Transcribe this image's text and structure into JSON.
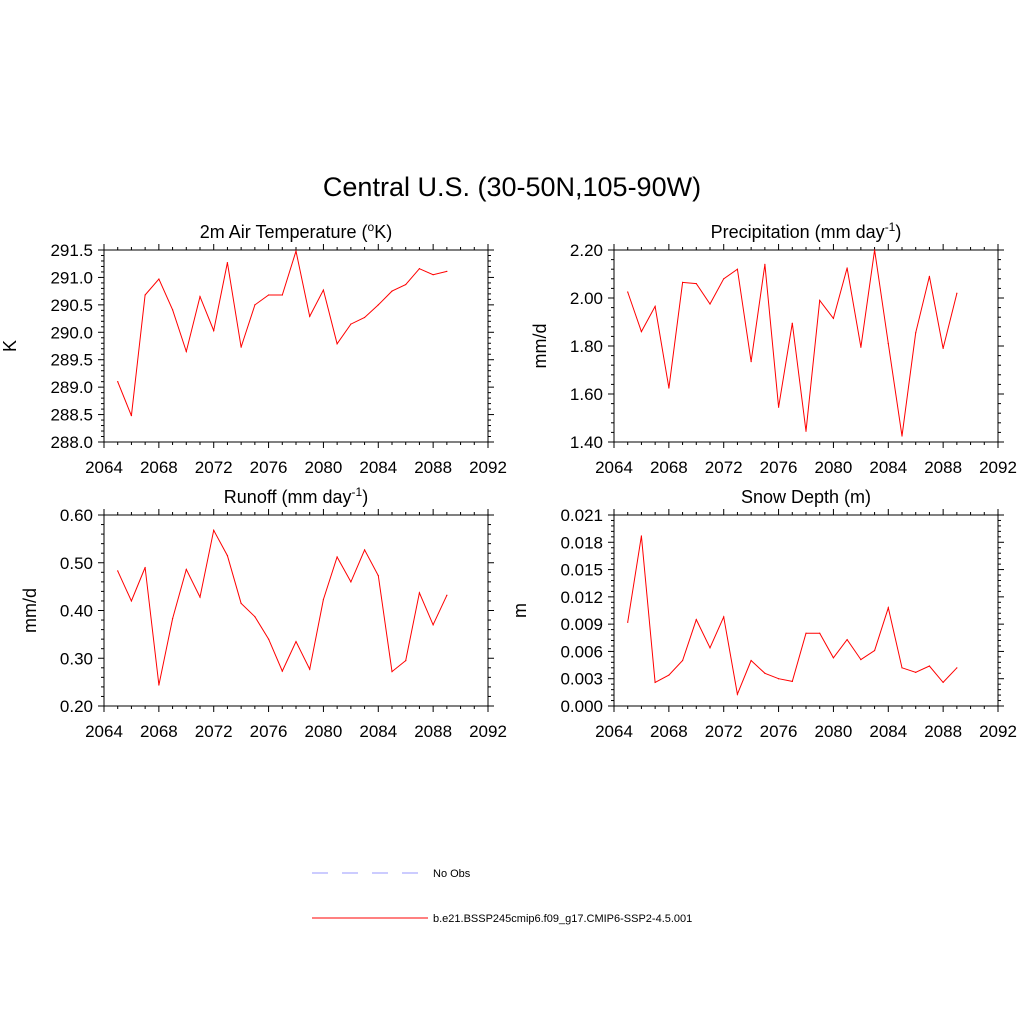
{
  "title": "Central U.S. (30-50N,105-90W)",
  "chart_data": [
    {
      "type": "line",
      "title": "2m Air Temperature (",
      "title_sup": "o",
      "title_after": "K)",
      "ylabel": "K",
      "xlim": [
        2064,
        2092
      ],
      "x_ticks": [
        2064,
        2068,
        2072,
        2076,
        2080,
        2084,
        2088,
        2092
      ],
      "ylim": [
        288.0,
        291.5
      ],
      "y_ticks": [
        "288.0",
        "288.5",
        "289.0",
        "289.5",
        "290.0",
        "290.5",
        "291.0",
        "291.5"
      ],
      "y_minor": 0.1,
      "series": [
        {
          "color": "#ff0000",
          "x": [
            2065,
            2066,
            2067,
            2068,
            2069,
            2070,
            2071,
            2072,
            2073,
            2074,
            2075,
            2076,
            2077,
            2078,
            2079,
            2080,
            2081,
            2082,
            2083,
            2084,
            2085,
            2086,
            2087,
            2088,
            2089
          ],
          "y": [
            289.1,
            288.48,
            290.68,
            290.97,
            290.41,
            289.65,
            290.65,
            290.03,
            291.27,
            289.73,
            290.5,
            290.68,
            290.68,
            291.48,
            290.29,
            290.77,
            289.79,
            290.15,
            290.27,
            290.5,
            290.75,
            290.87,
            291.16,
            291.05,
            291.11
          ]
        }
      ]
    },
    {
      "type": "line",
      "title": "Precipitation (mm day",
      "title_sup": "-1",
      "title_after": ")",
      "ylabel": "mm/d",
      "xlim": [
        2064,
        2092
      ],
      "x_ticks": [
        2064,
        2068,
        2072,
        2076,
        2080,
        2084,
        2088,
        2092
      ],
      "ylim": [
        1.4,
        2.2
      ],
      "y_ticks": [
        "1.40",
        "1.60",
        "1.80",
        "2.00",
        "2.20"
      ],
      "y_minor": 0.04,
      "series": [
        {
          "color": "#ff0000",
          "x": [
            2065,
            2066,
            2067,
            2068,
            2069,
            2070,
            2071,
            2072,
            2073,
            2074,
            2075,
            2076,
            2077,
            2078,
            2079,
            2080,
            2081,
            2082,
            2083,
            2084,
            2085,
            2086,
            2087,
            2088,
            2089
          ],
          "y": [
            2.025,
            1.86,
            1.965,
            1.625,
            2.065,
            2.06,
            1.975,
            2.08,
            2.12,
            1.735,
            2.14,
            1.545,
            1.895,
            1.445,
            1.99,
            1.915,
            2.125,
            1.795,
            2.2,
            1.81,
            1.425,
            1.855,
            2.09,
            1.79,
            2.02
          ]
        }
      ]
    },
    {
      "type": "line",
      "title": "Runoff (mm day",
      "title_sup": "-1",
      "title_after": ")",
      "ylabel": "mm/d",
      "xlim": [
        2064,
        2092
      ],
      "x_ticks": [
        2064,
        2068,
        2072,
        2076,
        2080,
        2084,
        2088,
        2092
      ],
      "ylim": [
        0.2,
        0.6
      ],
      "y_ticks": [
        "0.20",
        "0.30",
        "0.40",
        "0.50",
        "0.60"
      ],
      "y_minor": 0.02,
      "series": [
        {
          "color": "#ff0000",
          "x": [
            2065,
            2066,
            2067,
            2068,
            2069,
            2070,
            2071,
            2072,
            2073,
            2074,
            2075,
            2076,
            2077,
            2078,
            2079,
            2080,
            2081,
            2082,
            2083,
            2084,
            2085,
            2086,
            2087,
            2088,
            2089
          ],
          "y": [
            0.483,
            0.42,
            0.49,
            0.244,
            0.383,
            0.486,
            0.428,
            0.568,
            0.515,
            0.415,
            0.387,
            0.34,
            0.273,
            0.335,
            0.277,
            0.423,
            0.512,
            0.46,
            0.527,
            0.473,
            0.272,
            0.295,
            0.437,
            0.37,
            0.432
          ]
        }
      ]
    },
    {
      "type": "line",
      "title": "Snow Depth (m)",
      "title_sup": "",
      "title_after": "",
      "ylabel": "m",
      "xlim": [
        2064,
        2092
      ],
      "x_ticks": [
        2064,
        2068,
        2072,
        2076,
        2080,
        2084,
        2088,
        2092
      ],
      "ylim": [
        0.0,
        0.021
      ],
      "y_ticks": [
        "0.000",
        "0.003",
        "0.006",
        "0.009",
        "0.012",
        "0.015",
        "0.018",
        "0.021"
      ],
      "y_minor": 0.0006,
      "series": [
        {
          "color": "#ff0000",
          "x": [
            2065,
            2066,
            2067,
            2068,
            2069,
            2070,
            2071,
            2072,
            2073,
            2074,
            2075,
            2076,
            2077,
            2078,
            2079,
            2080,
            2081,
            2082,
            2083,
            2084,
            2085,
            2086,
            2087,
            2088,
            2089
          ],
          "y": [
            0.0092,
            0.0187,
            0.0026,
            0.0034,
            0.005,
            0.0095,
            0.0064,
            0.0098,
            0.0013,
            0.005,
            0.0036,
            0.003,
            0.0027,
            0.008,
            0.008,
            0.0053,
            0.0073,
            0.0051,
            0.0061,
            0.0108,
            0.0042,
            0.0037,
            0.0044,
            0.0026,
            0.0042
          ]
        }
      ]
    }
  ],
  "legend": [
    {
      "label": "No Obs",
      "color": "#9999ff",
      "style": "dashed"
    },
    {
      "label": "b.e21.BSSP245cmip6.f09_g17.CMIP6-SSP2-4.5.001",
      "color": "#ff0000",
      "style": "solid"
    }
  ]
}
